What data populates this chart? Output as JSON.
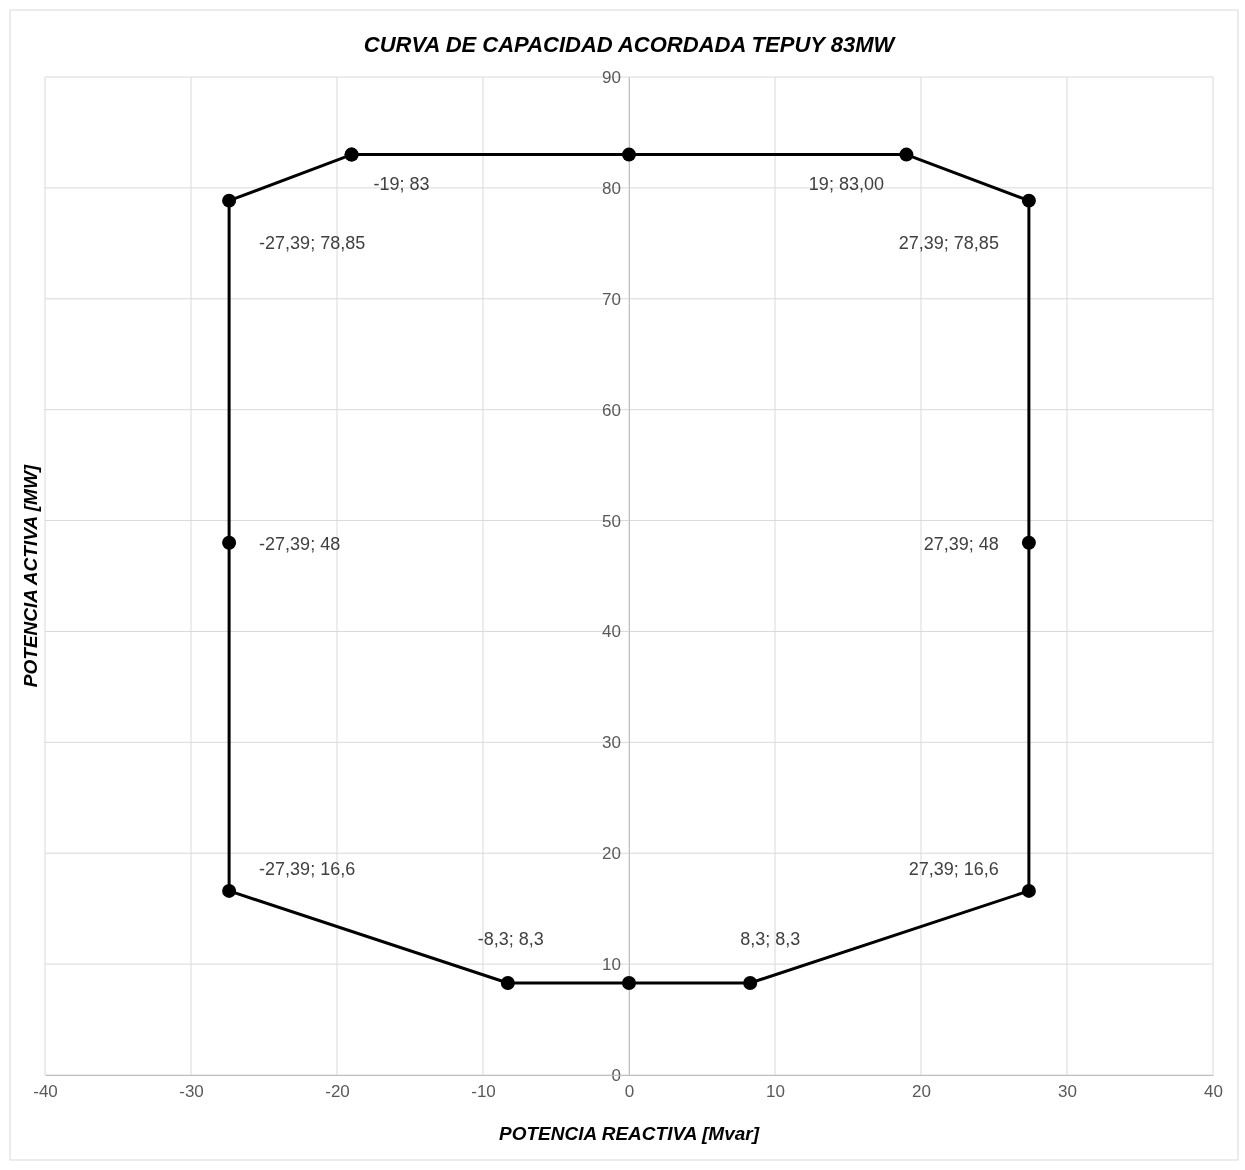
{
  "chart_data": {
    "type": "scatter",
    "title": "CURVA DE CAPACIDAD ACORDADA TEPUY 83MW",
    "xlabel": "POTENCIA REACTIVA  [Mvar]",
    "ylabel": "POTENCIA ACTIVA [MW]",
    "x": [
      -19,
      0,
      19,
      27.39,
      27.39,
      27.39,
      8.3,
      0,
      -8.3,
      -27.39,
      -27.39,
      -27.39,
      -19
    ],
    "series": [
      {
        "color": "#000000",
        "values": [
          83,
          83,
          83,
          78.85,
          48,
          16.6,
          8.3,
          8.3,
          8.3,
          16.6,
          48,
          78.85,
          83
        ],
        "value_labels": [
          "-19; 83",
          null,
          "19; 83,00",
          "27,39; 78,85",
          "27,39; 48",
          "27,39; 16,6",
          "8,3; 8,3",
          null,
          "-8,3; 8,3",
          "-27,39; 16,6",
          "-27,39; 48",
          "-27,39; 78,85",
          null
        ]
      }
    ],
    "xlim": [
      -40,
      40
    ],
    "xticks": [
      -40,
      -30,
      -20,
      -10,
      0,
      10,
      20,
      30,
      40
    ],
    "ylim": [
      0,
      90
    ],
    "yticks": [
      0,
      10,
      20,
      30,
      40,
      50,
      60,
      70,
      80,
      90
    ],
    "grid": true,
    "marker": "circle",
    "line_style": "solid"
  }
}
